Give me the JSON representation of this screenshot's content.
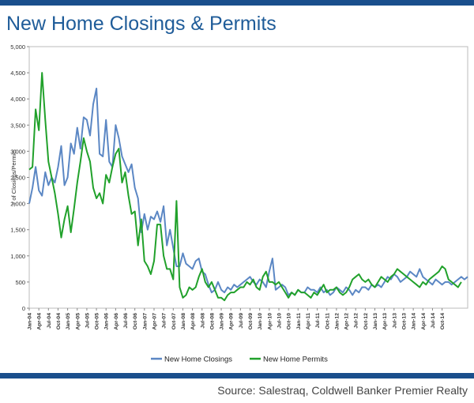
{
  "title": "New Home Closings & Permits",
  "source": "Source: Salestraq, Coldwell Banker Premier Realty",
  "colors": {
    "brand_bar": "#1a4f8c",
    "title": "#1f5c99",
    "closings": "#5b87c4",
    "permits": "#21a12b"
  },
  "chart_data": {
    "type": "line",
    "ylabel": "# of Closings/Permits",
    "ylim": [
      0,
      5000
    ],
    "yticks": [
      "0",
      "500",
      "1,000",
      "1,500",
      "2,000",
      "2,500",
      "3,000",
      "3,500",
      "4,000",
      "4,500",
      "5,000"
    ],
    "xticks": [
      "Jan-04",
      "Apr-04",
      "Jul-04",
      "Oct-04",
      "Jan-05",
      "Apr-05",
      "Jul-05",
      "Oct-05",
      "Jan-06",
      "Apr-06",
      "Jul-06",
      "Oct-06",
      "Jan-07",
      "Apr-07",
      "Jul-07",
      "Oct-07",
      "Jan-08",
      "Apr-08",
      "Jul-08",
      "Oct-08",
      "Jan-09",
      "Apr-09",
      "Jul-09",
      "Oct-09",
      "Jan-10",
      "Apr-10",
      "Jul-10",
      "Oct-10",
      "Jan-11",
      "Apr-11",
      "Jul-11",
      "Oct-11",
      "Jan-12",
      "Apr-12",
      "Jul-12",
      "Oct-12",
      "Jan-13",
      "Apr-13",
      "Jul-13",
      "Oct-13",
      "Jan-14",
      "Apr-14",
      "Jul-14",
      "Oct-14"
    ],
    "legend_position": "bottom",
    "grid": false,
    "series": [
      {
        "name": "New Home Closings",
        "values": [
          2000,
          2300,
          2700,
          2250,
          2150,
          2600,
          2350,
          2500,
          2400,
          2700,
          3100,
          2350,
          2500,
          3150,
          2950,
          3450,
          3050,
          3650,
          3600,
          3300,
          3900,
          4200,
          2950,
          2900,
          3600,
          2800,
          2700,
          3500,
          3250,
          2900,
          2750,
          2600,
          2750,
          2300,
          2100,
          1450,
          1800,
          1500,
          1750,
          1700,
          1850,
          1650,
          1950,
          1200,
          1500,
          1150,
          800,
          800,
          1050,
          850,
          800,
          750,
          900,
          950,
          700,
          650,
          450,
          300,
          350,
          500,
          350,
          300,
          400,
          350,
          450,
          400,
          450,
          500,
          550,
          600,
          500,
          450,
          550,
          500,
          400,
          700,
          950,
          350,
          400,
          450,
          400,
          250,
          300,
          250,
          350,
          300,
          300,
          400,
          350,
          350,
          300,
          400,
          300,
          350,
          250,
          300,
          400,
          350,
          300,
          400,
          350,
          250,
          350,
          300,
          400,
          400,
          350,
          450,
          400,
          450,
          400,
          500,
          600,
          550,
          650,
          600,
          500,
          550,
          600,
          700,
          650,
          600,
          750,
          600,
          550,
          500,
          450,
          550,
          500,
          450,
          500,
          500,
          450,
          500,
          550,
          600,
          550,
          600
        ]
      },
      {
        "name": "New Home Permits",
        "values": [
          2650,
          2700,
          3800,
          3400,
          4500,
          3600,
          2800,
          2500,
          2200,
          1800,
          1350,
          1700,
          1950,
          1450,
          1900,
          2400,
          2800,
          3250,
          3000,
          2800,
          2300,
          2100,
          2200,
          2000,
          2550,
          2400,
          2700,
          2950,
          3050,
          2400,
          2600,
          2150,
          1800,
          1850,
          1200,
          1700,
          900,
          800,
          650,
          900,
          1600,
          1600,
          1000,
          750,
          750,
          550,
          2050,
          400,
          200,
          250,
          400,
          350,
          400,
          600,
          750,
          500,
          400,
          500,
          350,
          200,
          200,
          150,
          250,
          300,
          300,
          350,
          400,
          400,
          500,
          450,
          550,
          400,
          350,
          600,
          700,
          500,
          500,
          450,
          500,
          400,
          300,
          200,
          300,
          250,
          350,
          300,
          300,
          250,
          200,
          300,
          250,
          350,
          450,
          300,
          350,
          350,
          400,
          300,
          250,
          300,
          400,
          550,
          600,
          650,
          550,
          500,
          550,
          450,
          400,
          500,
          600,
          550,
          500,
          600,
          650,
          750,
          700,
          650,
          600,
          550,
          500,
          450,
          400,
          500,
          450,
          550,
          600,
          650,
          700,
          800,
          750,
          550,
          500,
          450,
          400,
          500
        ]
      }
    ]
  }
}
